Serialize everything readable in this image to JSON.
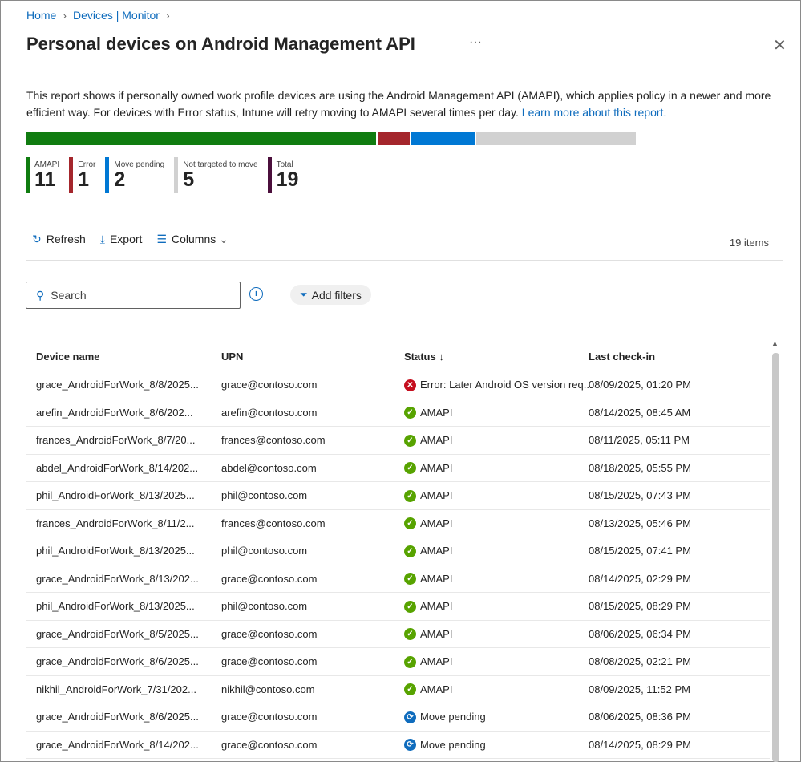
{
  "breadcrumb": [
    "Home",
    "Devices | Monitor"
  ],
  "title": "Personal devices on Android Management API",
  "more_label": "···",
  "description": "This report shows if personally owned work profile devices are using the Android Management API (AMAPI), which applies policy in a newer and more efficient way. For devices with Error status, Intune will retry moving to AMAPI several times per day.",
  "learn_more": "Learn more about this report.",
  "stats": [
    {
      "label": "AMAPI",
      "value": 11,
      "color": "#107c10"
    },
    {
      "label": "Error",
      "value": 1,
      "color": "#a4262c"
    },
    {
      "label": "Move pending",
      "value": 2,
      "color": "#0078d4"
    },
    {
      "label": "Not targeted to move",
      "value": 5,
      "color": "#d1d1d1"
    },
    {
      "label": "Total",
      "value": 19,
      "color": "#4b0f3c"
    }
  ],
  "toolbar": {
    "refresh": "Refresh",
    "export": "Export",
    "columns": "Columns",
    "count": "19 items"
  },
  "search": {
    "placeholder": "Search"
  },
  "add_filters": "Add filters",
  "columns": [
    "Device name",
    "UPN",
    "Status ↓",
    "Last check-in"
  ],
  "rows": [
    [
      "grace_AndroidForWork_8/8/2025...",
      "grace@contoso.com",
      "Error: Later Android OS version req...",
      "08/09/2025, 01:20 PM"
    ],
    [
      "arefin_AndroidForWork_8/6/202...",
      "arefin@contoso.com",
      "AMAPI",
      "08/14/2025, 08:45 AM"
    ],
    [
      "frances_AndroidForWork_8/7/20...",
      "frances@contoso.com",
      "AMAPI",
      "08/11/2025, 05:11 PM"
    ],
    [
      "abdel_AndroidForWork_8/14/202...",
      "abdel@contoso.com",
      "AMAPI",
      "08/18/2025, 05:55 PM"
    ],
    [
      "phil_AndroidForWork_8/13/2025...",
      "phil@contoso.com",
      "AMAPI",
      "08/15/2025, 07:43 PM"
    ],
    [
      "frances_AndroidForWork_8/11/2...",
      "frances@contoso.com",
      "AMAPI",
      "08/13/2025, 05:46 PM"
    ],
    [
      "phil_AndroidForWork_8/13/2025...",
      "phil@contoso.com",
      "AMAPI",
      "08/15/2025, 07:41 PM"
    ],
    [
      "grace_AndroidForWork_8/13/202...",
      "grace@contoso.com",
      "AMAPI",
      "08/14/2025, 02:29 PM"
    ],
    [
      "phil_AndroidForWork_8/13/2025...",
      "phil@contoso.com",
      "AMAPI",
      "08/15/2025, 08:29 PM"
    ],
    [
      "grace_AndroidForWork_8/5/2025...",
      "grace@contoso.com",
      "AMAPI",
      "08/06/2025, 06:34 PM"
    ],
    [
      "grace_AndroidForWork_8/6/2025...",
      "grace@contoso.com",
      "AMAPI",
      "08/08/2025, 02:21 PM"
    ],
    [
      "nikhil_AndroidForWork_7/31/202...",
      "nikhil@contoso.com",
      "AMAPI",
      "08/09/2025, 11:52 PM"
    ],
    [
      "grace_AndroidForWork_8/6/2025...",
      "grace@contoso.com",
      "Move pending",
      "08/06/2025, 08:36 PM"
    ],
    [
      "grace_AndroidForWork_8/14/202...",
      "grace@contoso.com",
      "Move pending",
      "08/14/2025, 08:29 PM"
    ]
  ]
}
